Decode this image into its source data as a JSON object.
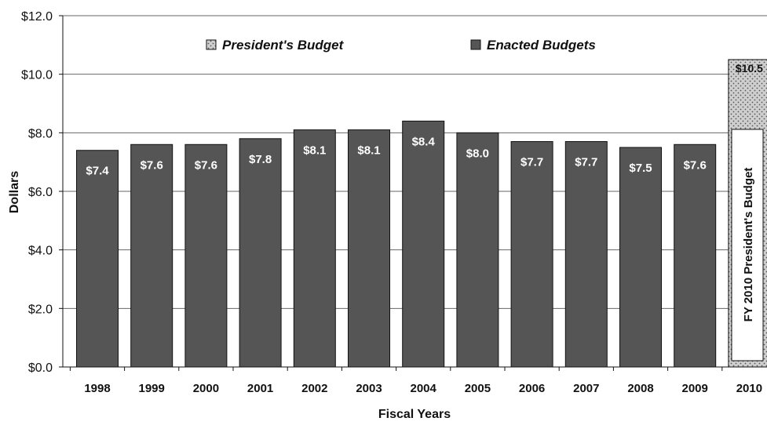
{
  "chart_data": {
    "type": "bar",
    "xlabel": "Fiscal Years",
    "ylabel": "Dollars",
    "ylim": [
      0,
      12
    ],
    "y_ticks": [
      "$0.0",
      "$2.0",
      "$4.0",
      "$6.0",
      "$8.0",
      "$10.0",
      "$12.0"
    ],
    "y_tick_values": [
      0,
      2,
      4,
      6,
      8,
      10,
      12
    ],
    "grid": "horizontal",
    "legend_position": "top",
    "categories": [
      "1998",
      "1999",
      "2000",
      "2001",
      "2002",
      "2003",
      "2004",
      "2005",
      "2006",
      "2007",
      "2008",
      "2009",
      "2010"
    ],
    "series": [
      {
        "name": "Enacted Budgets",
        "color": "#555555",
        "values": [
          7.4,
          7.6,
          7.6,
          7.8,
          8.1,
          8.1,
          8.4,
          8.0,
          7.7,
          7.7,
          7.5,
          7.6,
          null
        ],
        "labels": [
          "$7.4",
          "$7.6",
          "$7.6",
          "$7.8",
          "$8.1",
          "$8.1",
          "$8.4",
          "$8.0",
          "$7.7",
          "$7.7",
          "$7.5",
          "$7.6",
          ""
        ]
      },
      {
        "name": "President's Budget",
        "color": "#cfcfcf",
        "pattern": "dotted",
        "values": [
          null,
          null,
          null,
          null,
          null,
          null,
          null,
          null,
          null,
          null,
          null,
          null,
          10.5
        ],
        "labels": [
          "",
          "",
          "",
          "",
          "",
          "",
          "",
          "",
          "",
          "",
          "",
          "",
          "$10.5"
        ]
      }
    ],
    "annotation": "FY 2010 President's Budget"
  }
}
